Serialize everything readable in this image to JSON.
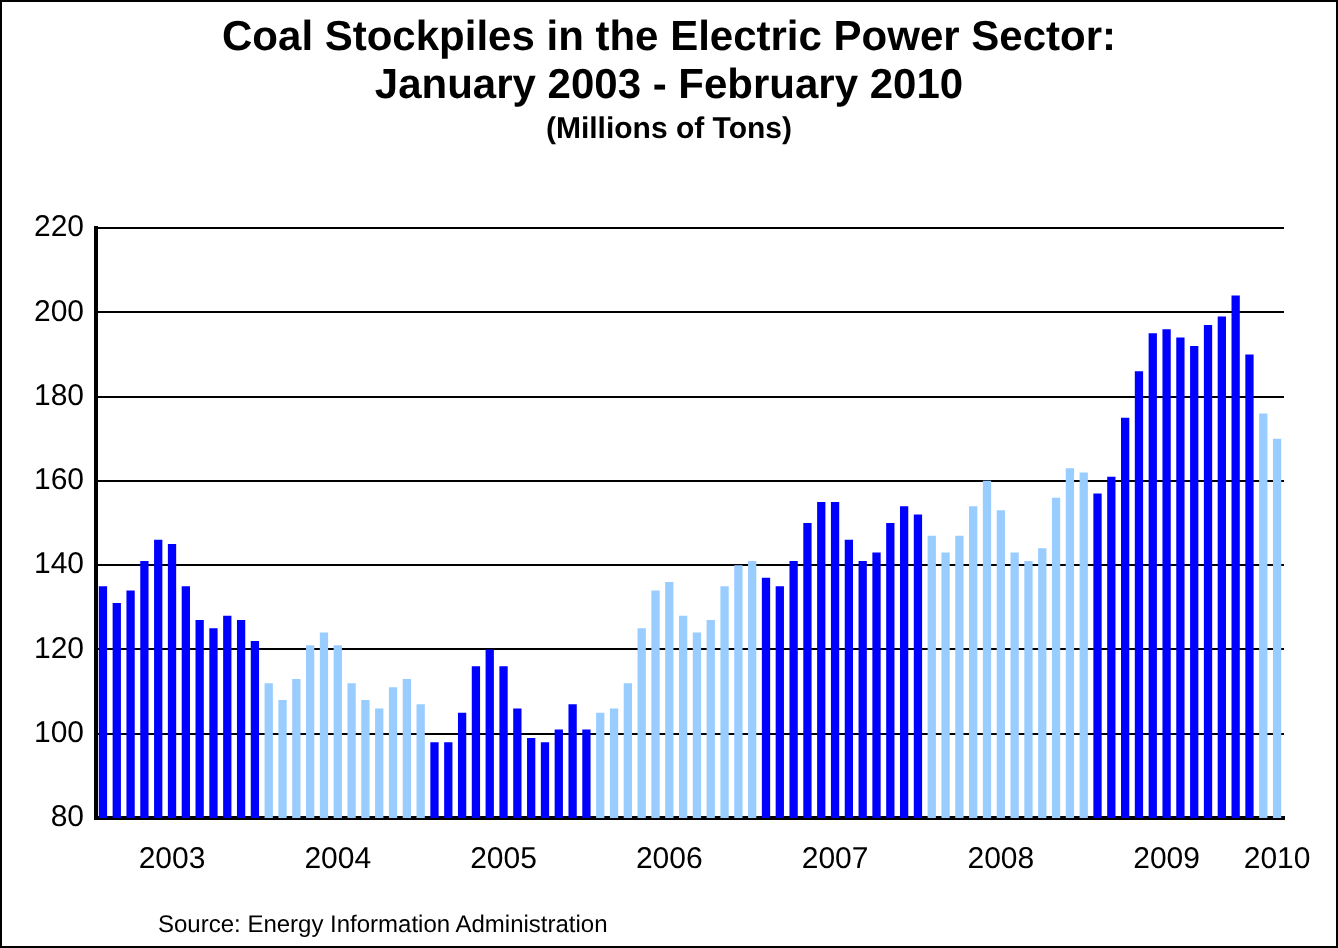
{
  "chart_data": {
    "type": "bar",
    "title": "Coal Stockpiles in the Electric Power Sector: January 2003 - February 2010",
    "subtitle": "(Millions of Tons)",
    "categories": [
      null,
      null,
      null,
      null,
      null,
      "2003",
      null,
      null,
      null,
      null,
      null,
      null,
      null,
      null,
      null,
      null,
      null,
      "2004",
      null,
      null,
      null,
      null,
      null,
      null,
      null,
      null,
      null,
      null,
      null,
      "2005",
      null,
      null,
      null,
      null,
      null,
      null,
      null,
      null,
      null,
      null,
      null,
      "2006",
      null,
      null,
      null,
      null,
      null,
      null,
      null,
      null,
      null,
      null,
      null,
      "2007",
      null,
      null,
      null,
      null,
      null,
      null,
      null,
      null,
      null,
      null,
      null,
      "2008",
      null,
      null,
      null,
      null,
      null,
      null,
      null,
      null,
      null,
      null,
      null,
      "2009",
      null,
      null,
      null,
      null,
      null,
      null,
      null,
      "2010"
    ],
    "values": [
      135,
      131,
      134,
      141,
      146,
      145,
      135,
      127,
      125,
      128,
      127,
      122,
      112,
      108,
      113,
      121,
      124,
      121,
      112,
      108,
      106,
      111,
      113,
      107,
      98,
      98,
      105,
      116,
      120,
      116,
      106,
      99,
      98,
      101,
      107,
      101,
      105,
      106,
      112,
      125,
      134,
      136,
      128,
      124,
      127,
      135,
      140,
      141,
      137,
      135,
      141,
      150,
      155,
      155,
      146,
      141,
      143,
      150,
      154,
      152,
      147,
      143,
      147,
      154,
      160,
      153,
      143,
      141,
      144,
      156,
      163,
      162,
      157,
      161,
      175,
      186,
      195,
      196,
      194,
      192,
      197,
      199,
      204,
      190,
      176,
      170
    ],
    "colors": [
      "#0000ff",
      "#0000ff",
      "#0000ff",
      "#0000ff",
      "#0000ff",
      "#0000ff",
      "#0000ff",
      "#0000ff",
      "#0000ff",
      "#0000ff",
      "#0000ff",
      "#0000ff",
      "#99ccff",
      "#99ccff",
      "#99ccff",
      "#99ccff",
      "#99ccff",
      "#99ccff",
      "#99ccff",
      "#99ccff",
      "#99ccff",
      "#99ccff",
      "#99ccff",
      "#99ccff",
      "#0000ff",
      "#0000ff",
      "#0000ff",
      "#0000ff",
      "#0000ff",
      "#0000ff",
      "#0000ff",
      "#0000ff",
      "#0000ff",
      "#0000ff",
      "#0000ff",
      "#0000ff",
      "#99ccff",
      "#99ccff",
      "#99ccff",
      "#99ccff",
      "#99ccff",
      "#99ccff",
      "#99ccff",
      "#99ccff",
      "#99ccff",
      "#99ccff",
      "#99ccff",
      "#99ccff",
      "#0000ff",
      "#0000ff",
      "#0000ff",
      "#0000ff",
      "#0000ff",
      "#0000ff",
      "#0000ff",
      "#0000ff",
      "#0000ff",
      "#0000ff",
      "#0000ff",
      "#0000ff",
      "#99ccff",
      "#99ccff",
      "#99ccff",
      "#99ccff",
      "#99ccff",
      "#99ccff",
      "#99ccff",
      "#99ccff",
      "#99ccff",
      "#99ccff",
      "#99ccff",
      "#99ccff",
      "#0000ff",
      "#0000ff",
      "#0000ff",
      "#0000ff",
      "#0000ff",
      "#0000ff",
      "#0000ff",
      "#0000ff",
      "#0000ff",
      "#0000ff",
      "#0000ff",
      "#0000ff",
      "#99ccff",
      "#99ccff"
    ],
    "ylim": [
      80,
      220
    ],
    "yticks": [
      80,
      100,
      120,
      140,
      160,
      180,
      200,
      220
    ],
    "grid": "y",
    "legend": false,
    "annotations": [
      "Source: Energy Information Administration"
    ]
  }
}
